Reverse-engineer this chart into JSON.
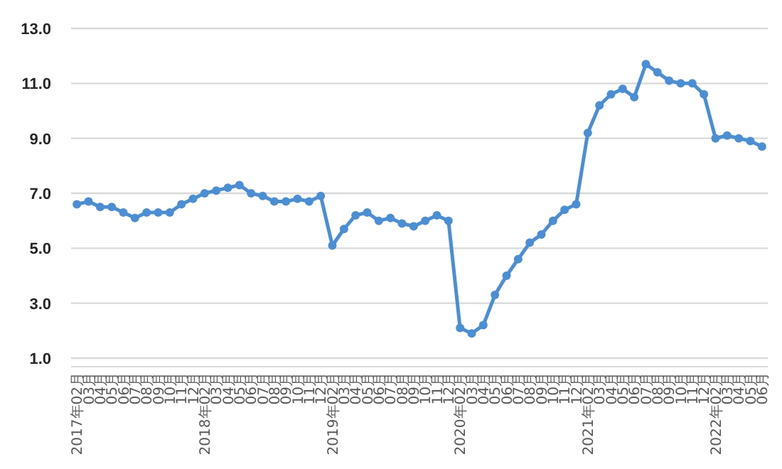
{
  "chart_data": {
    "type": "line",
    "categories": [
      "2017年02月",
      "03月",
      "04月",
      "05月",
      "06月",
      "07月",
      "08月",
      "09月",
      "10月",
      "11月",
      "12月",
      "2018年02月",
      "03月",
      "04月",
      "05月",
      "06月",
      "07月",
      "08月",
      "09月",
      "10月",
      "11月",
      "12月",
      "2019年02月",
      "03月",
      "04月",
      "05月",
      "06月",
      "07月",
      "08月",
      "09月",
      "10月",
      "11月",
      "12月",
      "2020年02月",
      "03月",
      "04月",
      "05月",
      "06月",
      "07月",
      "08月",
      "09月",
      "10月",
      "11月",
      "12月",
      "2021年02月",
      "03月",
      "04月",
      "05月",
      "06月",
      "07月",
      "08月",
      "09月",
      "10月",
      "11月",
      "12月",
      "2022年02月",
      "03月",
      "04月",
      "05月",
      "06月"
    ],
    "series": [
      {
        "color": "#4a8fd6",
        "values": [
          6.6,
          6.7,
          6.5,
          6.5,
          6.3,
          6.1,
          6.3,
          6.3,
          6.3,
          6.6,
          6.8,
          7.0,
          7.1,
          7.2,
          7.3,
          7.0,
          6.9,
          6.7,
          6.7,
          6.8,
          6.7,
          6.9,
          5.1,
          5.7,
          6.2,
          6.3,
          6.0,
          6.1,
          5.9,
          5.8,
          6.0,
          6.2,
          6.0,
          2.1,
          1.9,
          2.2,
          3.3,
          4.0,
          4.6,
          5.2,
          5.5,
          6.0,
          6.4,
          6.6,
          9.2,
          10.2,
          10.6,
          10.8,
          10.5,
          11.7,
          11.4,
          11.1,
          11.0,
          11.0,
          10.6,
          9.0,
          9.1,
          9.0,
          8.9,
          8.7
        ]
      }
    ],
    "ylim": [
      1,
      13
    ],
    "yticks": [
      {
        "value": 1,
        "label": "1.0"
      },
      {
        "value": 3,
        "label": "3.0"
      },
      {
        "value": 5,
        "label": "5.0"
      },
      {
        "value": 7,
        "label": "7.0"
      },
      {
        "value": 9,
        "label": "9.0"
      },
      {
        "value": 11,
        "label": "11.0"
      },
      {
        "value": 13,
        "label": "13.0"
      }
    ],
    "grid": "y",
    "marker": "circle",
    "line_style": "solid"
  }
}
